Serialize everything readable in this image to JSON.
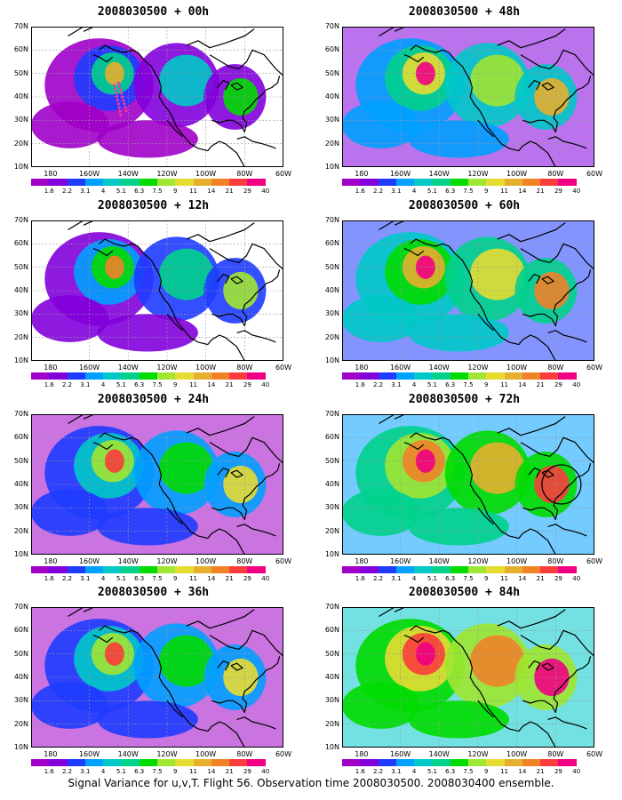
{
  "footer": "Signal Variance for u,v,T. Flight 56. Observation time 2008030500. 2008030400 ensemble.",
  "lat_labels": [
    "70N",
    "60N",
    "50N",
    "40N",
    "30N",
    "20N",
    "10N"
  ],
  "lon_labels": [
    "180",
    "160W",
    "140W",
    "120W",
    "100W",
    "80W",
    "60W"
  ],
  "colorbar_labels": [
    "1.6",
    "2.2",
    "3.1",
    "4",
    "5.1",
    "6.3",
    "7.5",
    "9",
    "11",
    "14",
    "21",
    "29",
    "40"
  ],
  "palette": [
    "#a000c8",
    "#8200dc",
    "#1e3cff",
    "#00a0ff",
    "#00c8c8",
    "#00d28c",
    "#00dc00",
    "#a0e632",
    "#e6dc32",
    "#e6af2d",
    "#f08228",
    "#fa3c3c",
    "#f00082"
  ],
  "panels": [
    {
      "title": "2008030500 + 00h",
      "level": 1,
      "observations": true
    },
    {
      "title": "2008030500 + 48h",
      "level": 4
    },
    {
      "title": "2008030500 + 12h",
      "level": 2
    },
    {
      "title": "2008030500 + 60h",
      "level": 5
    },
    {
      "title": "2008030500 + 24h",
      "level": 3
    },
    {
      "title": "2008030500 + 72h",
      "level": 6,
      "circle": true
    },
    {
      "title": "2008030500 + 36h",
      "level": 3
    },
    {
      "title": "2008030500 + 84h",
      "level": 7
    }
  ]
}
